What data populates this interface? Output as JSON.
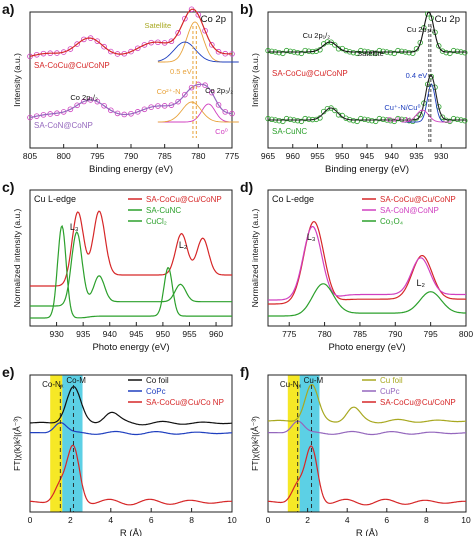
{
  "figure": {
    "panels": [
      {
        "letter": "a)"
      },
      {
        "letter": "b)"
      },
      {
        "letter": "c)"
      },
      {
        "letter": "d)"
      },
      {
        "letter": "e)"
      },
      {
        "letter": "f)"
      }
    ]
  },
  "colors": {
    "red": "#d62728",
    "green": "#2ca02c",
    "blue": "#1f3fbf",
    "purple": "#9467bd",
    "olive": "#a8a820",
    "orange": "#e8a33c",
    "black": "#111111",
    "yellow": "#f5e400",
    "cyan": "#40c8e0",
    "magenta": "#d040c0"
  },
  "chart_data": [
    {
      "panel": "a",
      "type": "line",
      "title": "Co 2p",
      "xlabel": "Binding energy (eV)",
      "ylabel": "Intensity (a.u.)",
      "xlim": [
        805,
        775
      ],
      "x_ticks": [
        805,
        800,
        795,
        790,
        785,
        780,
        775
      ],
      "series": [
        {
          "name": "SA-CoCu@Cu/CoNP",
          "color": "red"
        },
        {
          "name": "SA-CoN@CoNP",
          "color": "purple"
        }
      ],
      "annotations": [
        "Satellite",
        "0.5 eV",
        "Co²⁺-N",
        "Co 2p₁/₂",
        "Co 2p₃/₂",
        "Co⁰"
      ]
    },
    {
      "panel": "b",
      "type": "line",
      "title": "Cu 2p",
      "xlabel": "Binding energy (eV)",
      "ylabel": "Intensity (a.u.)",
      "xlim": [
        965,
        925
      ],
      "x_ticks": [
        965,
        960,
        955,
        950,
        945,
        940,
        935,
        930
      ],
      "series": [
        {
          "name": "SA-CoCu@Cu/CoNP",
          "color": "red"
        },
        {
          "name": "SA-CuNC",
          "color": "green"
        }
      ],
      "annotations": [
        "Cu 2p₁/₂",
        "Satellite",
        "Cu 2p₃/₂",
        "0.4 eV",
        "Cu⁺-N/Cu⁰",
        "Cu²⁺-N"
      ]
    },
    {
      "panel": "c",
      "type": "line",
      "title": "Cu L-edge",
      "xlabel": "Photo energy (eV)",
      "ylabel": "Normalized intensity (a.u.)",
      "xlim": [
        925,
        963
      ],
      "x_ticks": [
        930,
        935,
        940,
        945,
        950,
        955,
        960
      ],
      "series": [
        {
          "name": "SA-CoCu@Cu/CoNP",
          "color": "red",
          "peaks": [
            [
              934.0,
              0.8
            ],
            [
              938.0,
              0.7
            ],
            [
              953.5,
              0.45
            ],
            [
              957.5,
              0.4
            ]
          ]
        },
        {
          "name": "SA-CuNC",
          "color": "green",
          "peaks": [
            [
              933.8,
              0.85
            ],
            [
              938.0,
              0.3
            ],
            [
              953.3,
              0.2
            ]
          ]
        },
        {
          "name": "CuCl₂",
          "color": "green",
          "peaks": [
            [
              931.0,
              0.95
            ],
            [
              951.0,
              0.5
            ]
          ]
        }
      ],
      "annotations": [
        "L₃",
        "L₂"
      ]
    },
    {
      "panel": "d",
      "type": "line",
      "title": "Co L-edge",
      "xlabel": "Photo energy (eV)",
      "ylabel": "Normalized intensity (a.u.)",
      "xlim": [
        772,
        800
      ],
      "x_ticks": [
        775,
        780,
        785,
        790,
        795,
        800
      ],
      "series": [
        {
          "name": "SA-CoCu@Cu/CoNP",
          "color": "red",
          "peaks": [
            [
              778.5,
              0.85
            ],
            [
              793.8,
              0.45
            ]
          ]
        },
        {
          "name": "SA-CoN@CoNP",
          "color": "magenta",
          "peaks": [
            [
              778.3,
              0.8
            ],
            [
              793.6,
              0.4
            ]
          ]
        },
        {
          "name": "Co₃O₄",
          "color": "green",
          "peaks": [
            [
              779.8,
              0.45
            ],
            [
              795.0,
              0.3
            ]
          ]
        }
      ],
      "annotations": [
        "L₃",
        "L₂"
      ]
    },
    {
      "panel": "e",
      "type": "line",
      "xlabel": "R (Å)",
      "ylabel": "FT|χ(k)k²|(Å⁻³)",
      "xlim": [
        0,
        10
      ],
      "x_ticks": [
        0,
        2,
        4,
        6,
        8,
        10
      ],
      "shaded_regions": [
        {
          "label": "Co-Nₓ",
          "range": [
            1.0,
            1.6
          ],
          "color": "yellow"
        },
        {
          "label": "Co-M",
          "range": [
            1.6,
            2.6
          ],
          "color": "cyan"
        }
      ],
      "series": [
        {
          "name": "Co foil",
          "color": "black",
          "peaks": [
            [
              2.15,
              1.0
            ],
            [
              4.0,
              0.3
            ]
          ]
        },
        {
          "name": "CoPc",
          "color": "blue",
          "peaks": [
            [
              1.5,
              0.35
            ]
          ]
        },
        {
          "name": "SA-CoCu@Cu/Co NP",
          "color": "red",
          "peaks": [
            [
              1.5,
              0.3
            ],
            [
              2.15,
              0.95
            ]
          ]
        }
      ]
    },
    {
      "panel": "f",
      "type": "line",
      "xlabel": "R (Å)",
      "ylabel": "FT|χ(k)k²|(Å⁻³)",
      "xlim": [
        0,
        10
      ],
      "x_ticks": [
        0,
        2,
        4,
        6,
        8,
        10
      ],
      "shaded_regions": [
        {
          "label": "Cu-Nₓ",
          "range": [
            1.0,
            1.6
          ],
          "color": "yellow"
        },
        {
          "label": "Cu-M",
          "range": [
            1.6,
            2.6
          ],
          "color": "cyan"
        }
      ],
      "series": [
        {
          "name": "Cu foil",
          "color": "olive",
          "peaks": [
            [
              2.2,
              1.0
            ],
            [
              4.3,
              0.35
            ]
          ]
        },
        {
          "name": "CuPc",
          "color": "purple",
          "peaks": [
            [
              1.5,
              0.4
            ]
          ]
        },
        {
          "name": "SA-CoCu@Cu/CoNP",
          "color": "red",
          "peaks": [
            [
              1.5,
              0.3
            ],
            [
              2.2,
              0.95
            ]
          ]
        }
      ]
    }
  ]
}
